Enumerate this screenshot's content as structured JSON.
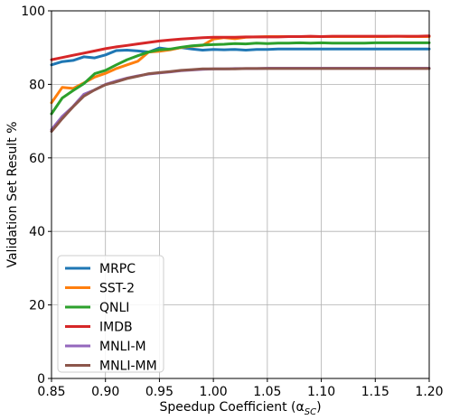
{
  "chart_data": {
    "type": "line",
    "xlabel": "Speedup Coefficient (α",
    "xlabel_sub": "SC",
    "xlabel_close": ")",
    "ylabel": "Validation Set Result %",
    "xlim": [
      0.85,
      1.2
    ],
    "ylim": [
      0,
      100
    ],
    "xticks": [
      "0.85",
      "0.90",
      "0.95",
      "1.00",
      "1.05",
      "1.10",
      "1.15",
      "1.20"
    ],
    "yticks": [
      "0",
      "20",
      "40",
      "60",
      "80",
      "100"
    ],
    "grid": true,
    "legend_position": "lower-left",
    "series": [
      {
        "name": "MRPC",
        "color": "#1f77b4",
        "x": [
          0.85,
          0.86,
          0.87,
          0.88,
          0.89,
          0.9,
          0.91,
          0.92,
          0.93,
          0.94,
          0.95,
          0.96,
          0.97,
          0.98,
          0.99,
          1.0,
          1.01,
          1.02,
          1.03,
          1.04,
          1.05,
          1.06,
          1.07,
          1.08,
          1.09,
          1.1,
          1.11,
          1.12,
          1.13,
          1.14,
          1.15,
          1.16,
          1.17,
          1.18,
          1.19,
          1.2
        ],
        "y": [
          85.3,
          86.2,
          86.5,
          87.5,
          87.2,
          88.0,
          89.2,
          89.3,
          89.1,
          88.8,
          89.9,
          89.5,
          90.0,
          89.6,
          89.3,
          89.5,
          89.4,
          89.5,
          89.3,
          89.5,
          89.5,
          89.6,
          89.6,
          89.6,
          89.6,
          89.6,
          89.6,
          89.6,
          89.6,
          89.6,
          89.6,
          89.6,
          89.6,
          89.6,
          89.6,
          89.6
        ]
      },
      {
        "name": "SST-2",
        "color": "#ff7f0e",
        "x": [
          0.85,
          0.86,
          0.87,
          0.88,
          0.89,
          0.9,
          0.91,
          0.92,
          0.93,
          0.94,
          0.95,
          0.96,
          0.97,
          0.98,
          0.99,
          1.0,
          1.01,
          1.02,
          1.03,
          1.04,
          1.05,
          1.06,
          1.07,
          1.08,
          1.09,
          1.1,
          1.11,
          1.12,
          1.13,
          1.14,
          1.15,
          1.16,
          1.17,
          1.18,
          1.19,
          1.2
        ],
        "y": [
          75.0,
          79.2,
          78.9,
          80.4,
          82.0,
          83.0,
          84.3,
          85.3,
          86.3,
          88.8,
          89.0,
          89.4,
          90.0,
          90.4,
          90.6,
          92.3,
          92.7,
          92.4,
          92.8,
          92.9,
          93.0,
          93.0,
          93.0,
          93.0,
          93.0,
          93.0,
          93.0,
          93.0,
          93.0,
          93.0,
          93.0,
          93.0,
          93.1,
          93.0,
          93.0,
          93.0
        ]
      },
      {
        "name": "QNLI",
        "color": "#2ca02c",
        "x": [
          0.85,
          0.86,
          0.87,
          0.88,
          0.89,
          0.9,
          0.91,
          0.92,
          0.93,
          0.94,
          0.95,
          0.96,
          0.97,
          0.98,
          0.99,
          1.0,
          1.01,
          1.02,
          1.03,
          1.04,
          1.05,
          1.06,
          1.07,
          1.08,
          1.09,
          1.1,
          1.11,
          1.12,
          1.13,
          1.14,
          1.15,
          1.16,
          1.17,
          1.18,
          1.19,
          1.2
        ],
        "y": [
          72.0,
          76.3,
          78.3,
          80.2,
          82.9,
          83.8,
          85.3,
          86.7,
          87.8,
          88.8,
          89.4,
          89.6,
          90.1,
          90.5,
          90.7,
          90.8,
          90.9,
          91.1,
          91.0,
          91.2,
          91.1,
          91.2,
          91.2,
          91.3,
          91.2,
          91.3,
          91.2,
          91.2,
          91.2,
          91.2,
          91.3,
          91.3,
          91.3,
          91.3,
          91.3,
          91.3
        ]
      },
      {
        "name": "IMDB",
        "color": "#d62728",
        "x": [
          0.85,
          0.86,
          0.87,
          0.88,
          0.89,
          0.9,
          0.91,
          0.92,
          0.93,
          0.94,
          0.95,
          0.96,
          0.97,
          0.98,
          0.99,
          1.0,
          1.01,
          1.02,
          1.03,
          1.04,
          1.05,
          1.06,
          1.07,
          1.08,
          1.09,
          1.1,
          1.11,
          1.12,
          1.13,
          1.14,
          1.15,
          1.16,
          1.17,
          1.18,
          1.19,
          1.2
        ],
        "y": [
          86.7,
          87.3,
          87.9,
          88.5,
          89.1,
          89.7,
          90.2,
          90.6,
          91.0,
          91.4,
          91.8,
          92.1,
          92.3,
          92.5,
          92.7,
          92.8,
          92.8,
          92.8,
          92.9,
          92.9,
          92.9,
          92.9,
          93.0,
          93.0,
          93.1,
          93.0,
          93.1,
          93.1,
          93.1,
          93.1,
          93.1,
          93.1,
          93.1,
          93.1,
          93.1,
          93.2
        ]
      },
      {
        "name": "MNLI-M",
        "color": "#9467bd",
        "x": [
          0.85,
          0.86,
          0.87,
          0.88,
          0.89,
          0.9,
          0.91,
          0.92,
          0.93,
          0.94,
          0.95,
          0.96,
          0.97,
          0.98,
          0.99,
          1.0,
          1.01,
          1.02,
          1.03,
          1.04,
          1.05,
          1.06,
          1.07,
          1.08,
          1.09,
          1.1,
          1.11,
          1.12,
          1.13,
          1.14,
          1.15,
          1.16,
          1.17,
          1.18,
          1.19,
          1.2
        ],
        "y": [
          67.7,
          71.3,
          74.0,
          77.3,
          78.5,
          80.0,
          80.9,
          81.7,
          82.3,
          82.8,
          83.1,
          83.4,
          83.7,
          83.9,
          84.1,
          84.2,
          84.2,
          84.3,
          84.3,
          84.3,
          84.4,
          84.4,
          84.4,
          84.4,
          84.4,
          84.4,
          84.4,
          84.4,
          84.4,
          84.4,
          84.4,
          84.4,
          84.4,
          84.4,
          84.4,
          84.4
        ]
      },
      {
        "name": "MNLI-MM",
        "color": "#8c564b",
        "x": [
          0.85,
          0.86,
          0.87,
          0.88,
          0.89,
          0.9,
          0.91,
          0.92,
          0.93,
          0.94,
          0.95,
          0.96,
          0.97,
          0.98,
          0.99,
          1.0,
          1.01,
          1.02,
          1.03,
          1.04,
          1.05,
          1.06,
          1.07,
          1.08,
          1.09,
          1.1,
          1.11,
          1.12,
          1.13,
          1.14,
          1.15,
          1.16,
          1.17,
          1.18,
          1.19,
          1.2
        ],
        "y": [
          67.2,
          70.7,
          73.9,
          76.8,
          78.5,
          79.9,
          80.7,
          81.6,
          82.2,
          82.9,
          83.2,
          83.5,
          83.8,
          84.0,
          84.2,
          84.2,
          84.2,
          84.2,
          84.3,
          84.3,
          84.3,
          84.3,
          84.3,
          84.3,
          84.3,
          84.3,
          84.3,
          84.3,
          84.3,
          84.3,
          84.3,
          84.3,
          84.3,
          84.3,
          84.3,
          84.3
        ]
      }
    ]
  }
}
